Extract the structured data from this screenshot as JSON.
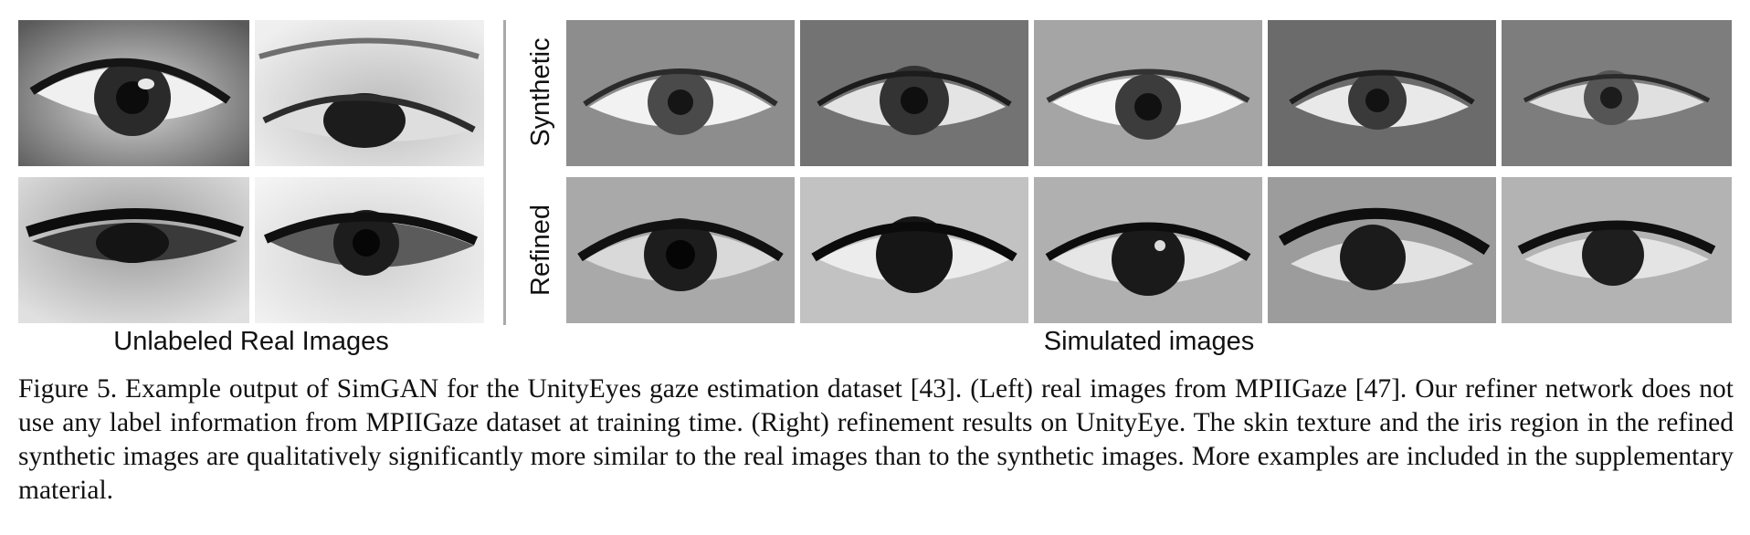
{
  "labels": {
    "synthetic": "Synthetic",
    "refined": "Refined",
    "unlabeled_real": "Unlabeled Real Images",
    "simulated": "Simulated images"
  },
  "caption": "Figure 5. Example output of SimGAN for the UnityEyes gaze estimation dataset [43]. (Left) real images from MPIIGaze [47]. Our refiner network does not use any label information from MPIIGaze dataset at training time. (Right) refinement results on UnityEye. The skin texture and the iris region in the refined synthetic images are qualitatively significantly more similar to the real images than to the synthetic images. More examples are included in the supplementary material.",
  "icons": {
    "eye_image": "eye-image-icon"
  }
}
